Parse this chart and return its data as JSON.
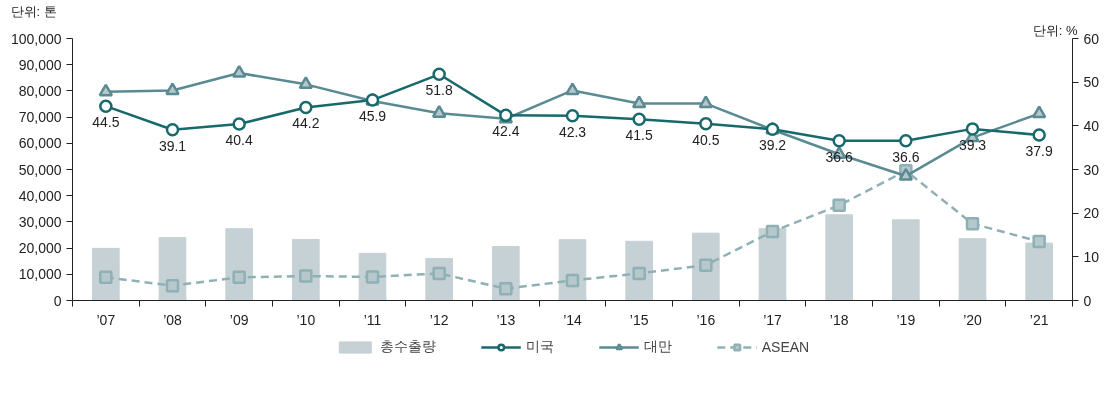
{
  "chart_data": {
    "type": "bar",
    "ylabel": "단위: 톤",
    "y2label": "단위: %",
    "categories": [
      "’07",
      "’08",
      "’09",
      "’10",
      "’11",
      "’12",
      "’13",
      "’14",
      "’15",
      "’16",
      "’17",
      "’18",
      "’19",
      "’20",
      "’21"
    ],
    "ylim": [
      0,
      100000
    ],
    "yticks": [
      {
        "value": 0,
        "label": "0"
      },
      {
        "value": 10000,
        "label": "10,000"
      },
      {
        "value": 20000,
        "label": "20,000"
      },
      {
        "value": 30000,
        "label": "30,000"
      },
      {
        "value": 40000,
        "label": "40,000"
      },
      {
        "value": 50000,
        "label": "50,000"
      },
      {
        "value": 60000,
        "label": "60,000"
      },
      {
        "value": 70000,
        "label": "70,000"
      },
      {
        "value": 80000,
        "label": "80,000"
      },
      {
        "value": 90000,
        "label": "90,000"
      },
      {
        "value": 100000,
        "label": "100,000"
      }
    ],
    "y2lim": [
      0,
      60
    ],
    "y2ticks": [
      0,
      10,
      20,
      30,
      40,
      50,
      60
    ],
    "grid": false,
    "legend": "bottom",
    "series": [
      {
        "name": "총수출량",
        "color": "#c5d1d5",
        "values": [
          19900,
          24000,
          27400,
          23300,
          18000,
          16000,
          20600,
          23200,
          22600,
          25700,
          27400,
          32700,
          30800,
          23600,
          21900
        ]
      },
      {
        "name": "미국",
        "type": "line",
        "axis": "y2",
        "color": "#17696b",
        "marker": "circle",
        "line_style": "solid",
        "values": [
          44.5,
          39.1,
          40.4,
          44.2,
          45.9,
          51.8,
          42.4,
          42.3,
          41.5,
          40.5,
          39.2,
          36.6,
          36.6,
          39.3,
          37.9
        ],
        "value_labels": [
          "44.5",
          "39.1",
          "40.4",
          "44.2",
          "45.9",
          "51.8",
          "42.4",
          "42.3",
          "41.5",
          "40.5",
          "39.2",
          "36.6",
          "36.6",
          "39.3",
          "37.9"
        ]
      },
      {
        "name": "대만",
        "type": "line",
        "axis": "y2",
        "color": "#5a8a92",
        "marker": "triangle",
        "line_style": "solid",
        "values": [
          47.8,
          48.1,
          52.1,
          49.5,
          45.7,
          42.9,
          41.6,
          48.1,
          45.1,
          45.1,
          39.1,
          33.5,
          28.5,
          37.3,
          42.8
        ]
      },
      {
        "name": "ASEAN",
        "type": "line",
        "axis": "y2",
        "color": "#8fb0b5",
        "marker": "square",
        "line_style": "dashed",
        "values": [
          5.3,
          3.4,
          5.3,
          5.6,
          5.4,
          6.2,
          2.7,
          4.6,
          6.2,
          8.1,
          15.8,
          21.8,
          29.7,
          17.6,
          13.5
        ]
      }
    ]
  }
}
